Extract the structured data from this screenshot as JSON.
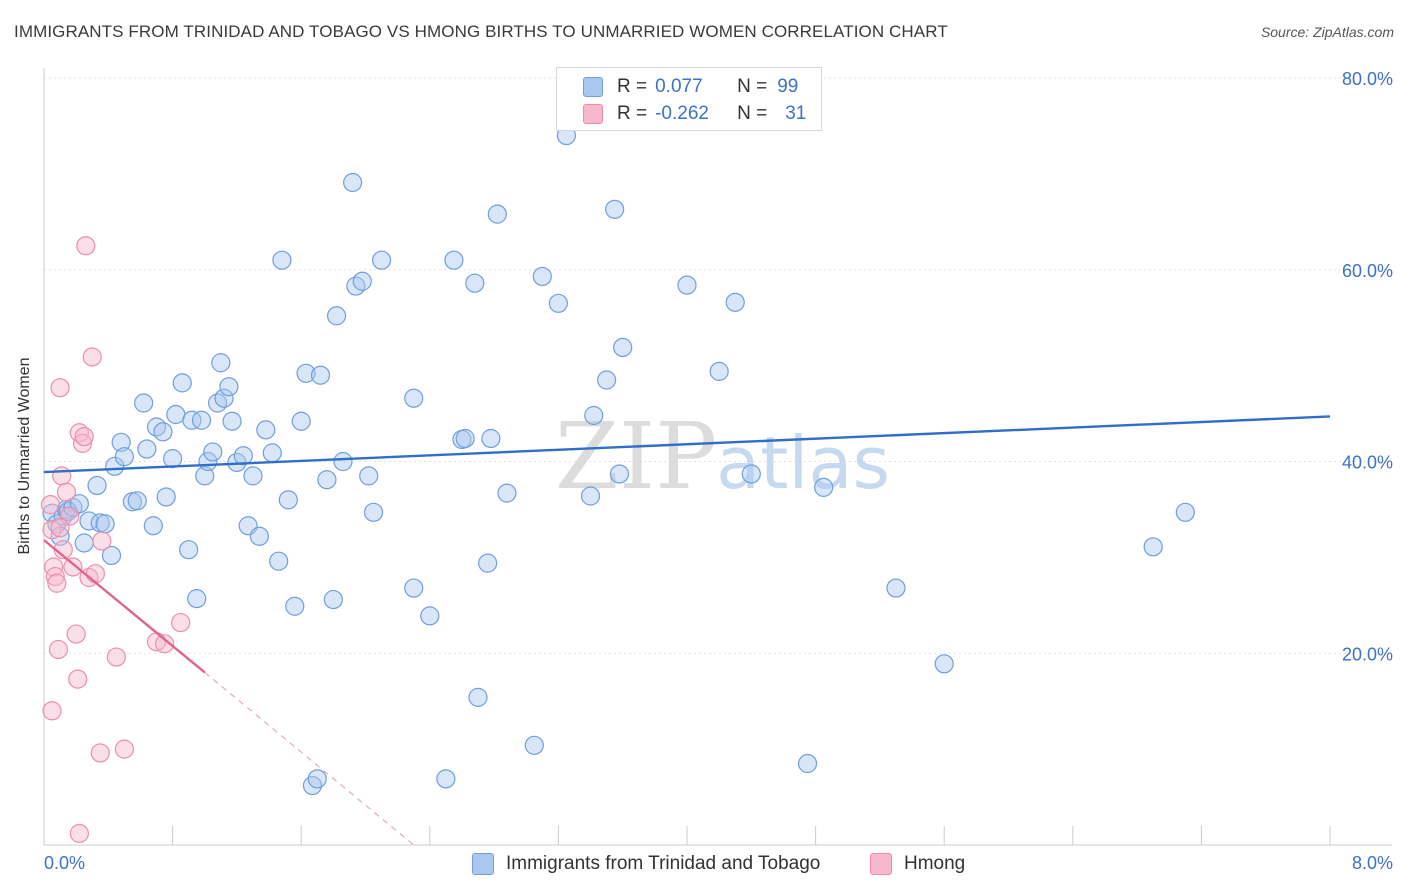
{
  "title": "IMMIGRANTS FROM TRINIDAD AND TOBAGO VS HMONG BIRTHS TO UNMARRIED WOMEN CORRELATION CHART",
  "source": "Source: ZipAtlas.com",
  "watermark": {
    "zip": "ZIP",
    "atlas": "atlas"
  },
  "legend": {
    "rows": [
      {
        "r_label": "R =",
        "r_value": "0.077",
        "n_label": "N =",
        "n_value": "99"
      },
      {
        "r_label": "R =",
        "r_value": "-0.262",
        "n_label": "N =",
        "n_value": "31"
      }
    ]
  },
  "colors": {
    "blue_fill": "#a9c7ef",
    "blue_stroke": "#6f9fdc",
    "blue_line": "#2f6fca",
    "pink_fill": "#f7b8cc",
    "pink_stroke": "#ec8eab",
    "pink_line": "#e0628f",
    "tick_text": "#3a73c8"
  },
  "chart_data": {
    "type": "scatter",
    "title": "IMMIGRANTS FROM TRINIDAD AND TOBAGO VS HMONG BIRTHS TO UNMARRIED WOMEN CORRELATION CHART",
    "xlabel": "",
    "ylabel": "Births to Unmarried Women",
    "xlim": [
      0,
      8
    ],
    "ylim": [
      0,
      80
    ],
    "x_tick_labels": [
      "0.0%",
      "8.0%"
    ],
    "y_ticks": [
      20,
      40,
      60,
      80
    ],
    "y_tick_labels": [
      "20.0%",
      "40.0%",
      "60.0%",
      "80.0%"
    ],
    "grid": true,
    "legend_position": "top-center",
    "series": [
      {
        "name": "Immigrants from Trinidad and Tobago",
        "color": "blue",
        "trend": {
          "x": [
            0,
            8
          ],
          "y": [
            38.9,
            44.7
          ],
          "dashed_ext": null
        },
        "points": [
          [
            0.05,
            34.6
          ],
          [
            0.08,
            33.5
          ],
          [
            0.1,
            32.2
          ],
          [
            0.12,
            34.3
          ],
          [
            0.14,
            35.0
          ],
          [
            0.15,
            34.8
          ],
          [
            0.18,
            35.2
          ],
          [
            0.22,
            35.6
          ],
          [
            0.25,
            31.5
          ],
          [
            0.28,
            33.8
          ],
          [
            0.33,
            37.5
          ],
          [
            0.35,
            33.6
          ],
          [
            0.38,
            33.5
          ],
          [
            0.42,
            30.2
          ],
          [
            0.44,
            39.5
          ],
          [
            0.48,
            42.0
          ],
          [
            0.5,
            40.5
          ],
          [
            0.55,
            35.8
          ],
          [
            0.58,
            35.9
          ],
          [
            0.62,
            46.1
          ],
          [
            0.64,
            41.3
          ],
          [
            0.68,
            33.3
          ],
          [
            0.7,
            43.6
          ],
          [
            0.74,
            43.1
          ],
          [
            0.76,
            36.3
          ],
          [
            0.8,
            40.3
          ],
          [
            0.82,
            44.9
          ],
          [
            0.86,
            48.2
          ],
          [
            0.9,
            30.8
          ],
          [
            0.92,
            44.3
          ],
          [
            0.95,
            25.7
          ],
          [
            0.98,
            44.3
          ],
          [
            1.0,
            38.5
          ],
          [
            1.02,
            40.0
          ],
          [
            1.05,
            41.0
          ],
          [
            1.08,
            46.1
          ],
          [
            1.1,
            50.3
          ],
          [
            1.12,
            46.6
          ],
          [
            1.15,
            47.8
          ],
          [
            1.17,
            44.2
          ],
          [
            1.2,
            39.9
          ],
          [
            1.24,
            40.6
          ],
          [
            1.27,
            33.3
          ],
          [
            1.3,
            38.5
          ],
          [
            1.34,
            32.2
          ],
          [
            1.38,
            43.3
          ],
          [
            1.42,
            40.9
          ],
          [
            1.46,
            29.6
          ],
          [
            1.48,
            61.0
          ],
          [
            1.52,
            36.0
          ],
          [
            1.56,
            24.9
          ],
          [
            1.6,
            44.2
          ],
          [
            1.63,
            49.2
          ],
          [
            1.67,
            6.2
          ],
          [
            1.7,
            6.9
          ],
          [
            1.72,
            49.0
          ],
          [
            1.76,
            38.1
          ],
          [
            1.8,
            25.6
          ],
          [
            1.82,
            55.2
          ],
          [
            1.86,
            40.0
          ],
          [
            1.92,
            69.1
          ],
          [
            1.94,
            58.3
          ],
          [
            1.98,
            58.8
          ],
          [
            2.02,
            38.5
          ],
          [
            2.05,
            34.7
          ],
          [
            2.1,
            61.0
          ],
          [
            2.3,
            26.8
          ],
          [
            2.3,
            46.6
          ],
          [
            2.4,
            23.9
          ],
          [
            2.5,
            6.9
          ],
          [
            2.55,
            61.0
          ],
          [
            2.6,
            42.3
          ],
          [
            2.62,
            42.4
          ],
          [
            2.68,
            58.6
          ],
          [
            2.7,
            15.4
          ],
          [
            2.76,
            29.4
          ],
          [
            2.78,
            42.4
          ],
          [
            2.82,
            65.8
          ],
          [
            2.88,
            36.7
          ],
          [
            3.05,
            10.4
          ],
          [
            3.1,
            59.3
          ],
          [
            3.2,
            56.5
          ],
          [
            3.25,
            74.0
          ],
          [
            3.4,
            36.4
          ],
          [
            3.42,
            44.8
          ],
          [
            3.5,
            48.5
          ],
          [
            3.55,
            66.3
          ],
          [
            3.58,
            38.7
          ],
          [
            3.6,
            51.9
          ],
          [
            4.0,
            58.4
          ],
          [
            4.2,
            49.4
          ],
          [
            4.3,
            56.6
          ],
          [
            4.4,
            38.7
          ],
          [
            4.75,
            8.5
          ],
          [
            4.85,
            37.3
          ],
          [
            5.3,
            26.8
          ],
          [
            5.6,
            18.9
          ],
          [
            6.9,
            31.1
          ],
          [
            7.1,
            34.7
          ]
        ]
      },
      {
        "name": "Hmong",
        "color": "pink",
        "trend": {
          "x": [
            0,
            1.0
          ],
          "y": [
            31.8,
            18.0
          ],
          "dashed_ext": {
            "x": [
              1.0,
              2.3
            ],
            "y": [
              18.0,
              0.0
            ]
          }
        },
        "points": [
          [
            0.04,
            35.5
          ],
          [
            0.05,
            32.9
          ],
          [
            0.06,
            29.0
          ],
          [
            0.07,
            28.0
          ],
          [
            0.08,
            27.3
          ],
          [
            0.09,
            20.4
          ],
          [
            0.1,
            47.7
          ],
          [
            0.11,
            38.5
          ],
          [
            0.12,
            30.8
          ],
          [
            0.14,
            36.8
          ],
          [
            0.16,
            34.3
          ],
          [
            0.18,
            29.0
          ],
          [
            0.2,
            22.0
          ],
          [
            0.21,
            17.3
          ],
          [
            0.22,
            43.0
          ],
          [
            0.24,
            41.9
          ],
          [
            0.25,
            42.6
          ],
          [
            0.26,
            62.5
          ],
          [
            0.28,
            27.9
          ],
          [
            0.3,
            50.9
          ],
          [
            0.32,
            28.3
          ],
          [
            0.35,
            9.6
          ],
          [
            0.05,
            14.0
          ],
          [
            0.1,
            33.1
          ],
          [
            0.36,
            31.7
          ],
          [
            0.45,
            19.6
          ],
          [
            0.5,
            10.0
          ],
          [
            0.7,
            21.2
          ],
          [
            0.75,
            21.0
          ],
          [
            0.85,
            23.2
          ],
          [
            0.22,
            1.2
          ]
        ]
      }
    ]
  },
  "bottom_legend": {
    "items": [
      {
        "label": "Immigrants from Trinidad and Tobago"
      },
      {
        "label": "Hmong"
      }
    ]
  }
}
